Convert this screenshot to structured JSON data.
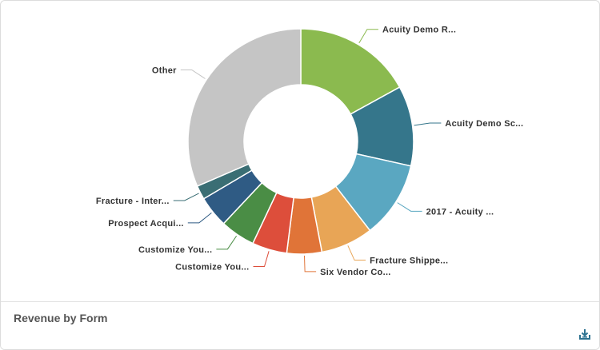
{
  "footer": {
    "title": "Revenue by Form",
    "download_icon": "download-tray-icon"
  },
  "colors": {
    "label_text": "#333333",
    "download_icon": "#2e7391",
    "border": "#dcdcdc"
  },
  "chart_data": {
    "type": "pie",
    "variant": "donut",
    "title": "Revenue by Form",
    "start_angle_deg": 0,
    "direction": "clockwise",
    "legend": "none",
    "slices": [
      {
        "label": "Acuity Demo R...",
        "value": 17.0,
        "color": "#8bba4f"
      },
      {
        "label": "Acuity Demo Sc...",
        "value": 11.5,
        "color": "#35768b"
      },
      {
        "label": "2017 - Acuity ...",
        "value": 11.0,
        "color": "#5aa7c1"
      },
      {
        "label": "Fracture Shippe...",
        "value": 7.5,
        "color": "#e8a556"
      },
      {
        "label": "Six Vendor Co...",
        "value": 5.0,
        "color": "#e07438"
      },
      {
        "label": "Customize You...",
        "value": 5.0,
        "color": "#dd4e3b"
      },
      {
        "label": "Customize You...",
        "value": 5.0,
        "color": "#4a8d45"
      },
      {
        "label": "Prospect Acqui...",
        "value": 4.5,
        "color": "#2f5b84"
      },
      {
        "label": "Fracture - Inter...",
        "value": 2.0,
        "color": "#3a6e74"
      },
      {
        "label": "Other",
        "value": 31.5,
        "color": "#c5c5c5"
      }
    ]
  }
}
